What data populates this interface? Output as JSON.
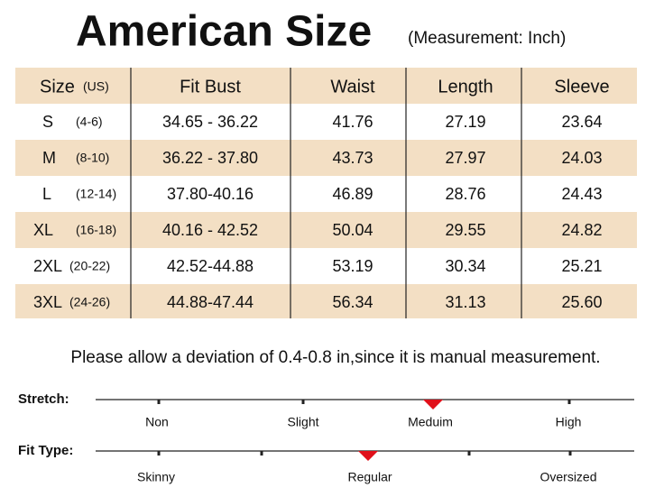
{
  "header": {
    "title": "American Size",
    "subtitle": "(Measurement: Inch)"
  },
  "table": {
    "columns": [
      "Size",
      "Fit Bust",
      "Waist",
      "Length",
      "Sleeve"
    ],
    "size_note": "(US)",
    "rows": [
      [
        "S",
        "(4-6)",
        "34.65 - 36.22",
        "41.76",
        "27.19",
        "23.64"
      ],
      [
        "M",
        "(8-10)",
        "36.22 - 37.80",
        "43.73",
        "27.97",
        "24.03"
      ],
      [
        "L",
        "(12-14)",
        "37.80-40.16",
        "46.89",
        "28.76",
        "24.43"
      ],
      [
        "XL",
        "(16-18)",
        "40.16 - 42.52",
        "50.04",
        "29.55",
        "24.82"
      ],
      [
        "2XL",
        "(20-22)",
        "42.52-44.88",
        "53.19",
        "30.34",
        "25.21"
      ],
      [
        "3XL",
        "(24-26)",
        "44.88-47.44",
        "56.34",
        "31.13",
        "25.60"
      ]
    ]
  },
  "note": "Please allow a deviation of 0.4-0.8 in,since it is manual measurement.",
  "scales": [
    {
      "label": "Stretch:",
      "options": [
        "Non",
        "Slight",
        "Meduim",
        "High"
      ]
    },
    {
      "label": "Fit Type:",
      "options": [
        "Skinny",
        "Regular",
        "Oversized"
      ]
    }
  ]
}
